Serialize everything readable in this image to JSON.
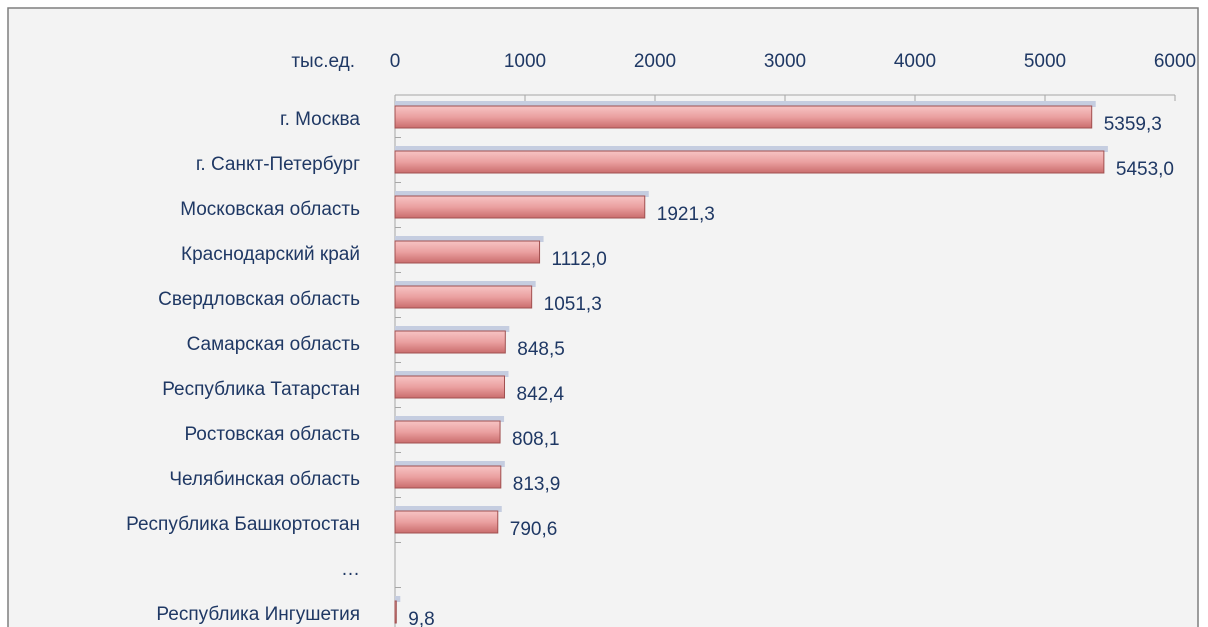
{
  "chart_data": {
    "type": "bar",
    "orientation": "horizontal",
    "unit_label": "тыс.ед.",
    "categories": [
      "г. Москва",
      "г. Санкт-Петербург",
      "Московская область",
      "Краснодарский край",
      "Свердловская область",
      "Самарская область",
      "Республика Татарстан",
      "Ростовская область",
      "Челябинская область",
      "Республика Башкортостан",
      "…",
      "Республика Ингушетия"
    ],
    "values": [
      5359.3,
      5453.0,
      1921.3,
      1112.0,
      1051.3,
      848.5,
      842.4,
      808.1,
      813.9,
      790.6,
      null,
      9.8
    ],
    "value_labels": [
      "5359,3",
      "5453,0",
      "1921,3",
      "1112,0",
      "1051,3",
      "848,5",
      "842,4",
      "808,1",
      "813,9",
      "790,6",
      null,
      "9,8"
    ],
    "color": "#e89a9a",
    "xlim": [
      0,
      6000
    ],
    "xticks": [
      0,
      1000,
      2000,
      3000,
      4000,
      5000,
      6000
    ]
  }
}
